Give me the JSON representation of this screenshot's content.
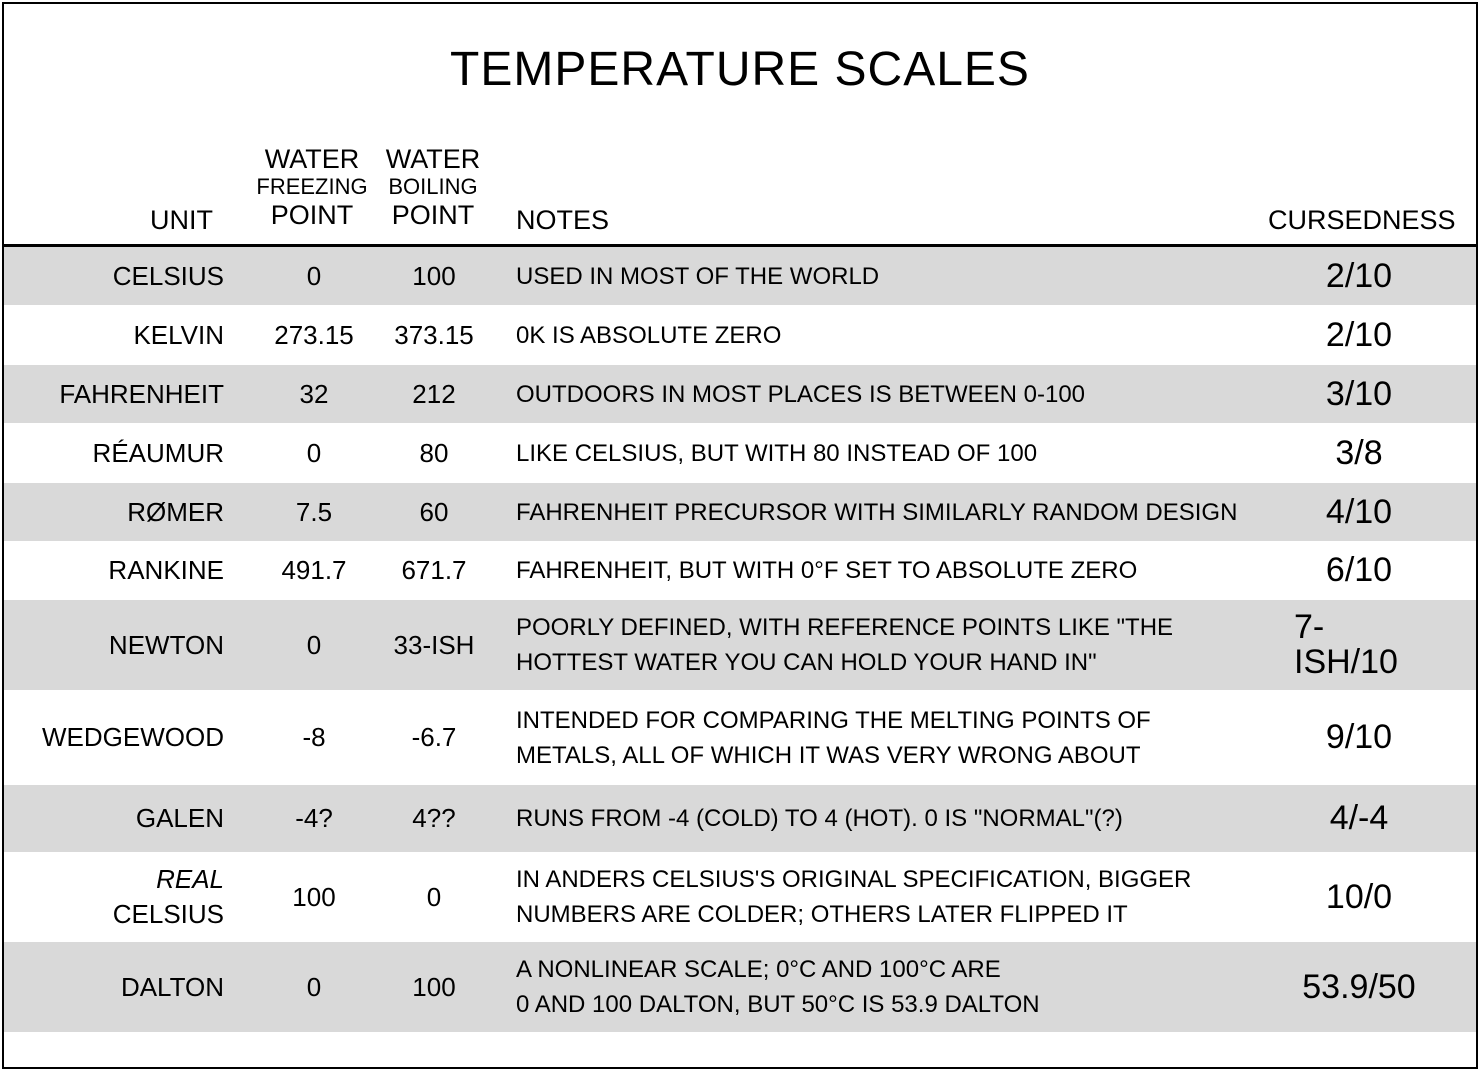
{
  "title": "Temperature Scales",
  "headers": {
    "unit": "Unit",
    "freezing": [
      "Water",
      "Freezing",
      "Point"
    ],
    "boiling": [
      "Water",
      "Boiling",
      "Point"
    ],
    "notes": "Notes",
    "cursedness": "Cursedness"
  },
  "rows": [
    {
      "unit": "Celsius",
      "freezing": "0",
      "boiling": "100",
      "notes": [
        "Used in most of the world"
      ],
      "cursedness": "2/10"
    },
    {
      "unit": "Kelvin",
      "freezing": "273.15",
      "boiling": "373.15",
      "notes": [
        "0K is absolute zero"
      ],
      "cursedness": "2/10"
    },
    {
      "unit": "Fahrenheit",
      "freezing": "32",
      "boiling": "212",
      "notes": [
        "Outdoors in most places is between 0-100"
      ],
      "cursedness": "3/10"
    },
    {
      "unit": "Réaumur",
      "freezing": "0",
      "boiling": "80",
      "notes": [
        "Like Celsius, but with 80 instead of 100"
      ],
      "cursedness": "3/8"
    },
    {
      "unit": "Rømer",
      "freezing": "7.5",
      "boiling": "60",
      "notes": [
        "Fahrenheit precursor with similarly random design"
      ],
      "cursedness": "4/10"
    },
    {
      "unit": "Rankine",
      "freezing": "491.7",
      "boiling": "671.7",
      "notes": [
        "Fahrenheit, but with 0°F set to absolute zero"
      ],
      "cursedness": "6/10"
    },
    {
      "unit": "Newton",
      "freezing": "0",
      "boiling": "33-ish",
      "notes": [
        "Poorly defined, with reference points like \"the",
        "hottest water you can hold your hand in\""
      ],
      "cursedness": "7-ish/10"
    },
    {
      "unit": "Wedgewood",
      "freezing": "-8",
      "boiling": "-6.7",
      "notes": [
        "Intended for comparing the melting points of",
        "metals, all of which it was very wrong about"
      ],
      "cursedness": "9/10"
    },
    {
      "unit": "Galen",
      "freezing": "-4?",
      "boiling": "4??",
      "notes": [
        "Runs from -4 (cold) to 4 (hot).  0 is \"normal\"(?)"
      ],
      "cursedness": "4/-4"
    },
    {
      "unit_prefix": "Real",
      "unit": "Celsius",
      "freezing": "100",
      "boiling": "0",
      "notes": [
        "In Anders Celsius's original specification, bigger",
        "numbers are colder; others later flipped it"
      ],
      "cursedness": "10/0"
    },
    {
      "unit": "Dalton",
      "freezing": "0",
      "boiling": "100",
      "notes": [
        "A nonlinear scale; 0°C and 100°C are",
        "0 and 100 Dalton, but 50°C is 53.9 Dalton"
      ],
      "cursedness": "53.9/50"
    }
  ],
  "colors": {
    "stripe": "#d9d9d9",
    "background": "#ffffff",
    "ink": "#000000"
  }
}
